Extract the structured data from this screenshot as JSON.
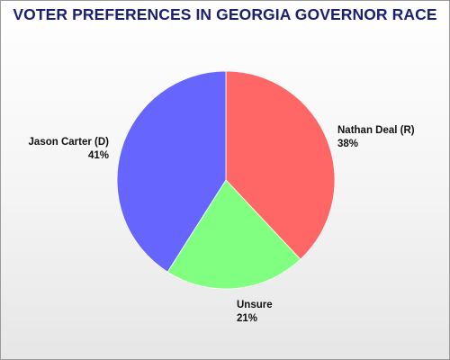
{
  "chart_data": {
    "type": "pie",
    "title": "VOTER PREFERENCES IN GEORGIA GOVERNOR RACE",
    "slices": [
      {
        "label": "Nathan Deal (R)",
        "value": 38,
        "value_label": "38%",
        "color": "#ff6666"
      },
      {
        "label": "Unsure",
        "value": 21,
        "value_label": "21%",
        "color": "#80ff80"
      },
      {
        "label": "Jason Carter (D)",
        "value": 41,
        "value_label": "41%",
        "color": "#6666ff"
      }
    ],
    "start": "12 o'clock",
    "direction": "clockwise"
  }
}
